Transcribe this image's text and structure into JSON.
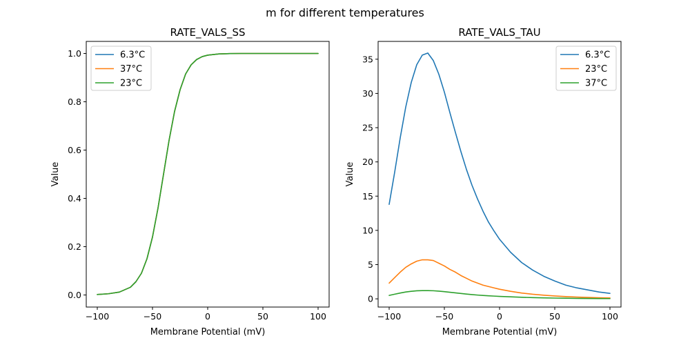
{
  "figure": {
    "suptitle": "m for different temperatures"
  },
  "chart_data": [
    {
      "type": "line",
      "title": "RATE_VALS_SS",
      "xlabel": "Membrane Potential (mV)",
      "ylabel": "Value",
      "xlim": [
        -110,
        110
      ],
      "ylim": [
        -0.05,
        1.05
      ],
      "xticks": [
        -100,
        -50,
        0,
        50,
        100
      ],
      "xtick_labels": [
        "−100",
        "−50",
        "0",
        "50",
        "100"
      ],
      "yticks": [
        0.0,
        0.2,
        0.4,
        0.6,
        0.8,
        1.0
      ],
      "ytick_labels": [
        "0.0",
        "0.2",
        "0.4",
        "0.6",
        "0.8",
        "1.0"
      ],
      "legend": "top-left",
      "grid": false,
      "x": [
        -100,
        -90,
        -80,
        -70,
        -65,
        -60,
        -55,
        -50,
        -45,
        -40,
        -35,
        -30,
        -25,
        -20,
        -15,
        -10,
        -5,
        0,
        10,
        20,
        30,
        40,
        50,
        60,
        70,
        80,
        90,
        100
      ],
      "series": [
        {
          "name": "6.3°C",
          "color": "#1f77b4",
          "values": [
            0.002,
            0.005,
            0.012,
            0.032,
            0.055,
            0.09,
            0.15,
            0.24,
            0.36,
            0.5,
            0.64,
            0.76,
            0.85,
            0.915,
            0.953,
            0.975,
            0.987,
            0.993,
            0.998,
            0.9995,
            1.0,
            1.0,
            1.0,
            1.0,
            1.0,
            1.0,
            1.0,
            1.0
          ]
        },
        {
          "name": "37°C",
          "color": "#ff7f0e",
          "values": [
            0.002,
            0.005,
            0.012,
            0.032,
            0.055,
            0.09,
            0.15,
            0.24,
            0.36,
            0.5,
            0.64,
            0.76,
            0.85,
            0.915,
            0.953,
            0.975,
            0.987,
            0.993,
            0.998,
            0.9995,
            1.0,
            1.0,
            1.0,
            1.0,
            1.0,
            1.0,
            1.0,
            1.0
          ]
        },
        {
          "name": "23°C",
          "color": "#2ca02c",
          "values": [
            0.002,
            0.005,
            0.012,
            0.032,
            0.055,
            0.09,
            0.15,
            0.24,
            0.36,
            0.5,
            0.64,
            0.76,
            0.85,
            0.915,
            0.953,
            0.975,
            0.987,
            0.993,
            0.998,
            0.9995,
            1.0,
            1.0,
            1.0,
            1.0,
            1.0,
            1.0,
            1.0,
            1.0
          ]
        }
      ]
    },
    {
      "type": "line",
      "title": "RATE_VALS_TAU",
      "xlabel": "Membrane Potential (mV)",
      "ylabel": "Value",
      "xlim": [
        -110,
        110
      ],
      "ylim": [
        -1.2,
        37.6
      ],
      "xticks": [
        -100,
        -50,
        0,
        50,
        100
      ],
      "xtick_labels": [
        "−100",
        "−50",
        "0",
        "50",
        "100"
      ],
      "yticks": [
        0,
        5,
        10,
        15,
        20,
        25,
        30,
        35
      ],
      "ytick_labels": [
        "0",
        "5",
        "10",
        "15",
        "20",
        "25",
        "30",
        "35"
      ],
      "legend": "top-right",
      "grid": false,
      "x": [
        -100,
        -95,
        -90,
        -85,
        -80,
        -75,
        -70,
        -65,
        -60,
        -55,
        -50,
        -45,
        -40,
        -35,
        -30,
        -25,
        -20,
        -15,
        -10,
        -5,
        0,
        10,
        20,
        30,
        40,
        50,
        60,
        70,
        80,
        90,
        100
      ],
      "series": [
        {
          "name": "6.3°C",
          "color": "#1f77b4",
          "values": [
            13.8,
            18.5,
            23.5,
            28.0,
            31.6,
            34.2,
            35.6,
            35.9,
            34.8,
            32.8,
            30.2,
            27.2,
            24.3,
            21.5,
            18.9,
            16.6,
            14.6,
            12.8,
            11.2,
            9.9,
            8.7,
            6.8,
            5.3,
            4.2,
            3.3,
            2.6,
            2.0,
            1.6,
            1.3,
            1.0,
            0.8
          ]
        },
        {
          "name": "23°C",
          "color": "#ff7f0e",
          "values": [
            2.3,
            3.1,
            3.9,
            4.6,
            5.1,
            5.5,
            5.7,
            5.7,
            5.6,
            5.2,
            4.8,
            4.3,
            3.9,
            3.4,
            3.0,
            2.6,
            2.3,
            2.0,
            1.8,
            1.6,
            1.4,
            1.1,
            0.85,
            0.67,
            0.53,
            0.42,
            0.33,
            0.26,
            0.2,
            0.16,
            0.13
          ]
        },
        {
          "name": "37°C",
          "color": "#2ca02c",
          "values": [
            0.5,
            0.68,
            0.85,
            1.0,
            1.1,
            1.17,
            1.2,
            1.2,
            1.18,
            1.12,
            1.05,
            0.96,
            0.87,
            0.78,
            0.7,
            0.62,
            0.55,
            0.49,
            0.44,
            0.4,
            0.36,
            0.29,
            0.23,
            0.18,
            0.14,
            0.11,
            0.09,
            0.07,
            0.055,
            0.045,
            0.035
          ]
        }
      ]
    }
  ]
}
